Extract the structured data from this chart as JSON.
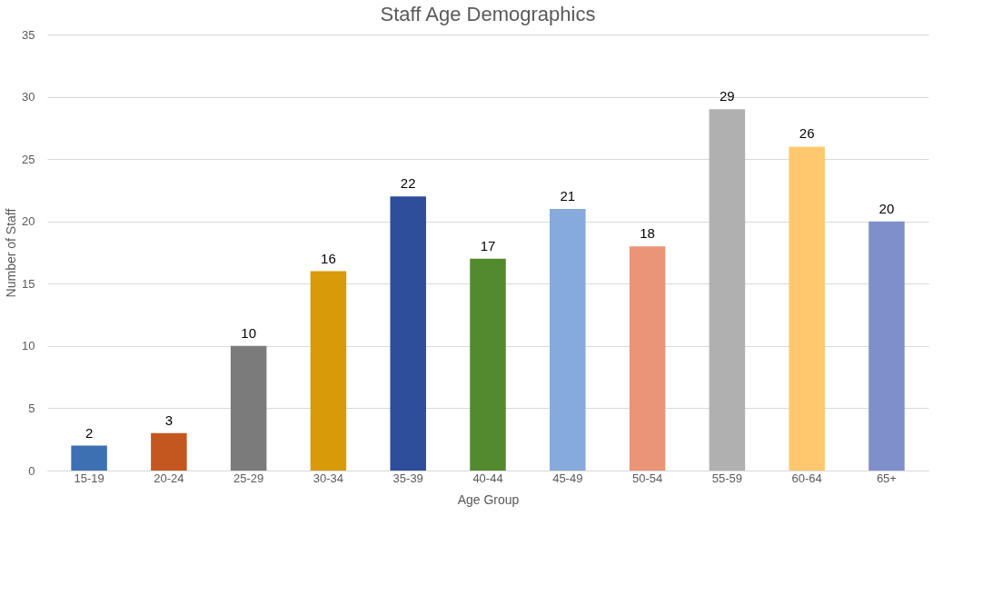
{
  "chart_data": {
    "type": "bar",
    "title": "Staff Age Demographics",
    "xlabel": "Age Group",
    "ylabel": "Number of Staff",
    "categories": [
      "15-19",
      "20-24",
      "25-29",
      "30-34",
      "35-39",
      "40-44",
      "45-49",
      "50-54",
      "55-59",
      "60-64",
      "65+"
    ],
    "values": [
      2,
      3,
      10,
      16,
      22,
      17,
      21,
      18,
      29,
      26,
      20
    ],
    "colors": [
      "#3d70b2",
      "#c4571f",
      "#7b7b7b",
      "#d99a0a",
      "#2e4d9a",
      "#538a30",
      "#86aadb",
      "#ea9478",
      "#b0b0b0",
      "#ffc86e",
      "#7f8fcc"
    ],
    "ylim": [
      0,
      35
    ],
    "yticks": [
      0,
      5,
      10,
      15,
      20,
      25,
      30,
      35
    ],
    "grid": "y",
    "data_labels": true
  }
}
